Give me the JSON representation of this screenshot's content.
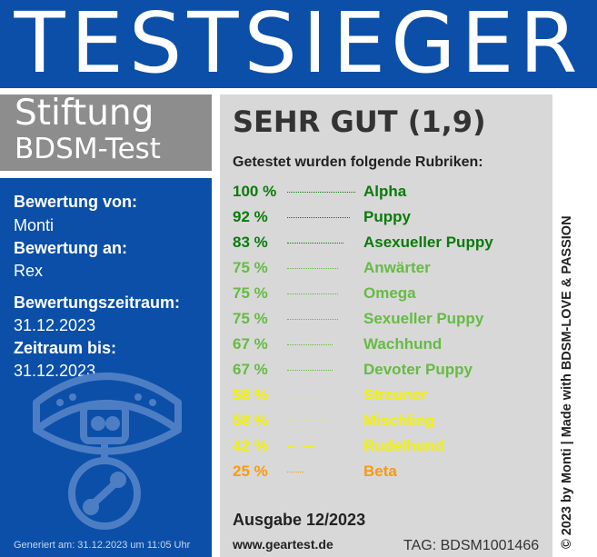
{
  "banner": {
    "title": "TESTSIEGER"
  },
  "brand": {
    "line1": "Stiftung",
    "line2": "BDSM-Test"
  },
  "details": {
    "from_label": "Bewertung von:",
    "from_value": "Monti",
    "to_label": "Bewertung an:",
    "to_value": "Rex",
    "period_label": "Bewertungszeitraum:",
    "period_value": "31.12.2023",
    "until_label": "Zeitraum bis:",
    "until_value": "31.12.2023",
    "generated": "Generiert am: 31.12.2023 um 11:05 Uhr"
  },
  "result": {
    "rating": "SEHR GUT (1,9)",
    "subheading": "Getestet wurden folgende Rubriken:",
    "items": [
      {
        "percent": "100 %",
        "name": "Alpha",
        "value": 100,
        "color": "#0b7a0b"
      },
      {
        "percent": "92 %",
        "name": "Puppy",
        "value": 92,
        "color": "#0b7a0b"
      },
      {
        "percent": "83 %",
        "name": "Asexueller Puppy",
        "value": 83,
        "color": "#0b7a0b"
      },
      {
        "percent": "75 %",
        "name": "Anwärter",
        "value": 75,
        "color": "#66bb44"
      },
      {
        "percent": "75 %",
        "name": "Omega",
        "value": 75,
        "color": "#66bb44"
      },
      {
        "percent": "75 %",
        "name": "Sexueller Puppy",
        "value": 75,
        "color": "#66bb44"
      },
      {
        "percent": "67 %",
        "name": "Wachhund",
        "value": 67,
        "color": "#66bb44"
      },
      {
        "percent": "67 %",
        "name": "Devoter Puppy",
        "value": 67,
        "color": "#66bb44"
      },
      {
        "percent": "58 %",
        "name": "Streuner",
        "value": 58,
        "color": "#f2f200"
      },
      {
        "percent": "58 %",
        "name": "Mischling",
        "value": 58,
        "color": "#f2f200"
      },
      {
        "percent": "42 %",
        "name": "Rudelhund",
        "value": 42,
        "color": "#f2f200"
      },
      {
        "percent": "25 %",
        "name": "Beta",
        "value": 25,
        "color": "#f79a14"
      }
    ]
  },
  "footer": {
    "edition": "Ausgabe 12/2023",
    "url": "www.geartest.de",
    "tag": "TAG: BDSM1001466",
    "copyright": "© 2023 by Monti | Made with BDSM-LOVE & PASSION"
  },
  "colors": {
    "blue": "#0b4fa8",
    "gray_box": "#8d8d8d",
    "panel": "#d8d8d8"
  },
  "icons": {
    "emblem": "dog-collar-icon"
  }
}
